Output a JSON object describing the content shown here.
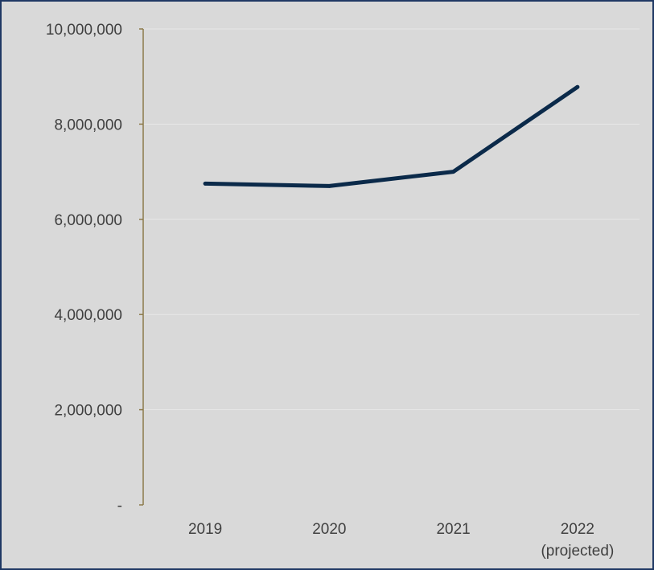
{
  "chart_data": {
    "type": "line",
    "categories": [
      "2019",
      "2020",
      "2021",
      "2022"
    ],
    "category_sublabels": [
      "",
      "",
      "",
      "(projected)"
    ],
    "series": [
      {
        "values": [
          6750000,
          6700000,
          7000000,
          8780000
        ]
      }
    ],
    "yticks": [
      0,
      2000000,
      4000000,
      6000000,
      8000000,
      10000000
    ],
    "ytick_labels": [
      "-",
      "2,000,000",
      "4,000,000",
      "6,000,000",
      "8,000,000",
      "10,000,000"
    ],
    "ylim": [
      0,
      10000000
    ],
    "grid": true,
    "legend": "none",
    "title": "",
    "xlabel": "",
    "ylabel": "",
    "colors": {
      "line": "#0b2a4a",
      "background": "#d9d9d9",
      "frame": "#1f3864",
      "y_axis": "#8c7a4a",
      "gridline": "#e7e7e7",
      "text": "#404040"
    }
  }
}
